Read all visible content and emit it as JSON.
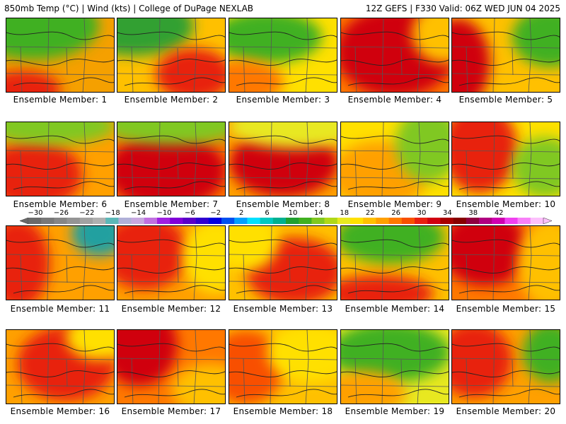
{
  "header": {
    "left_title": "850mb Temp (°C) | Wind (kts) | College of DuPage NEXLAB",
    "right_title": "12Z GEFS | F330 Valid: 06Z WED JUN 04 2025"
  },
  "colorbar": {
    "tick_labels": [
      "−30",
      "−26",
      "−22",
      "−18",
      "−14",
      "−10",
      "−6",
      "−2",
      "2",
      "6",
      "10",
      "14",
      "18",
      "22",
      "26",
      "30",
      "34",
      "38",
      "42"
    ],
    "bins": [
      {
        "color": "#6a6a6a"
      },
      {
        "color": "#787878"
      },
      {
        "color": "#868686"
      },
      {
        "color": "#949494"
      },
      {
        "color": "#a2a2a2"
      },
      {
        "color": "#b0b0b0"
      },
      {
        "color": "#5cb8b8"
      },
      {
        "color": "#b0b0d8"
      },
      {
        "color": "#c8a8e0"
      },
      {
        "color": "#c070e0"
      },
      {
        "color": "#a020e0"
      },
      {
        "color": "#8000d8"
      },
      {
        "color": "#5a00c8"
      },
      {
        "color": "#3000d0"
      },
      {
        "color": "#0000e0"
      },
      {
        "color": "#0050f0"
      },
      {
        "color": "#00a0ff"
      },
      {
        "color": "#00e0ff"
      },
      {
        "color": "#00c8c0"
      },
      {
        "color": "#00b090"
      },
      {
        "color": "#20a030"
      },
      {
        "color": "#40b020"
      },
      {
        "color": "#80c820"
      },
      {
        "color": "#b0d818"
      },
      {
        "color": "#e8e820"
      },
      {
        "color": "#ffe000"
      },
      {
        "color": "#ffc000"
      },
      {
        "color": "#ffa000"
      },
      {
        "color": "#ff7800"
      },
      {
        "color": "#f85000"
      },
      {
        "color": "#e82010"
      },
      {
        "color": "#d00010"
      },
      {
        "color": "#a80000"
      },
      {
        "color": "#880000"
      },
      {
        "color": "#900040"
      },
      {
        "color": "#b00080"
      },
      {
        "color": "#d000b0"
      },
      {
        "color": "#f040f0"
      },
      {
        "color": "#f880f8"
      },
      {
        "color": "#fcc0fc"
      }
    ]
  },
  "members": [
    {
      "label": "Ensemble Member: 1"
    },
    {
      "label": "Ensemble Member: 2"
    },
    {
      "label": "Ensemble Member: 3"
    },
    {
      "label": "Ensemble Member: 4"
    },
    {
      "label": "Ensemble Member: 5"
    },
    {
      "label": "Ensemble Member: 6"
    },
    {
      "label": "Ensemble Member: 7"
    },
    {
      "label": "Ensemble Member: 8"
    },
    {
      "label": "Ensemble Member: 9"
    },
    {
      "label": "Ensemble Member: 10"
    },
    {
      "label": "Ensemble Member: 11"
    },
    {
      "label": "Ensemble Member: 12"
    },
    {
      "label": "Ensemble Member: 13"
    },
    {
      "label": "Ensemble Member: 14"
    },
    {
      "label": "Ensemble Member: 15"
    },
    {
      "label": "Ensemble Member: 16"
    },
    {
      "label": "Ensemble Member: 17"
    },
    {
      "label": "Ensemble Member: 18"
    },
    {
      "label": "Ensemble Member: 19"
    },
    {
      "label": "Ensemble Member: 20"
    }
  ]
}
